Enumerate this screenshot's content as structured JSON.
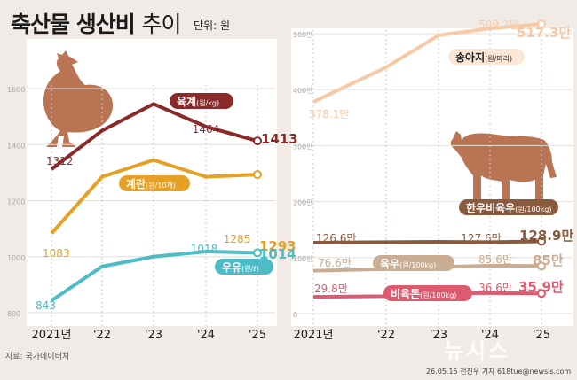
{
  "header": {
    "title_bold": "축산물 생산비",
    "title_light": "추이",
    "unit": "단위: 원"
  },
  "footer": {
    "source": "자료: 국가데이터처",
    "credit": "26.05.15 전진우 기자 618tue@newsis.com",
    "watermark": "뉴시스"
  },
  "colors": {
    "background": "#f0ebe6",
    "chicken": "#8b2a2a",
    "egg": "#e5a126",
    "milk": "#4dbcc6",
    "calf": "#f7c9a6",
    "beef": "#8a5a3e",
    "pork": "#de5b6f",
    "lamb": "#c9ac92",
    "animal": "#b97454"
  },
  "chart_data": [
    {
      "type": "line",
      "x": [
        "2021년",
        "'22",
        "'23",
        "'24",
        "'25"
      ],
      "yticks": [
        "800",
        "1000",
        "1200",
        "1400",
        "1600"
      ],
      "ylim": [
        800,
        1600
      ],
      "series": [
        {
          "name": "육계",
          "unit": "(원/kg)",
          "values": [
            1312,
            1450,
            1545,
            1464,
            1413
          ],
          "first_label": "1312",
          "prev_label": "1464",
          "last_label": "1413"
        },
        {
          "name": "계란",
          "unit": "(원/10개)",
          "values": [
            1083,
            1285,
            1345,
            1285,
            1293
          ],
          "first_label": "1083",
          "prev_label": "1285",
          "last_label": "1293"
        },
        {
          "name": "우유",
          "unit": "(원/ℓ)",
          "values": [
            843,
            965,
            1000,
            1018,
            1014
          ],
          "first_label": "843",
          "prev_label": "1018",
          "last_label": "1014"
        }
      ]
    },
    {
      "type": "line",
      "x": [
        "2021년",
        "'22",
        "'23",
        "'24",
        "'25"
      ],
      "yticks": [
        "0",
        "100만",
        "200만",
        "300만",
        "400만",
        "500만"
      ],
      "ylim": [
        0,
        500
      ],
      "series": [
        {
          "name": "송아지",
          "unit": "(원/마리)",
          "values": [
            378.1,
            440,
            497,
            509.2,
            517.3
          ],
          "first_label": "378.1만",
          "prev_label": "509.2만",
          "last_label": "517.3만"
        },
        {
          "name": "한우비육우",
          "unit": "(원/100kg)",
          "values": [
            126.6,
            127.5,
            128.2,
            127.6,
            128.9
          ],
          "first_label": "126.6만",
          "prev_label": "127.6만",
          "last_label": "128.9만"
        },
        {
          "name": "육우",
          "unit": "(원/100kg)",
          "values": [
            76.6,
            79.5,
            83,
            85.6,
            85
          ],
          "first_label": "76.6만",
          "prev_label": "85.6만",
          "last_label": "85만"
        },
        {
          "name": "비육돈",
          "unit": "(원/100kg)",
          "values": [
            29.8,
            31,
            36,
            36.6,
            35.9
          ],
          "first_label": "29.8만",
          "prev_label": "36.6만",
          "last_label": "35.9만"
        }
      ]
    }
  ]
}
